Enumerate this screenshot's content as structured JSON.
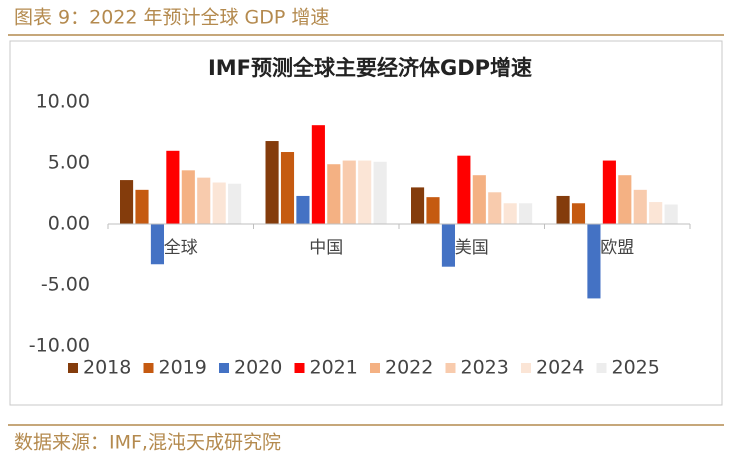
{
  "caption": "图表 9：2022 年预计全球 GDP 增速",
  "source": "数据来源：IMF,混沌天成研究院",
  "chart_data": {
    "type": "bar",
    "title": "IMF预测全球主要经济体GDP增速",
    "categories": [
      "全球",
      "中国",
      "美国",
      "欧盟"
    ],
    "series": [
      {
        "name": "2018",
        "color": "#843c0c",
        "values": [
          3.6,
          6.8,
          3.0,
          2.3
        ]
      },
      {
        "name": "2019",
        "color": "#c55a11",
        "values": [
          2.8,
          5.9,
          2.2,
          1.7
        ]
      },
      {
        "name": "2020",
        "color": "#4472c4",
        "values": [
          -3.3,
          2.3,
          -3.5,
          -6.1
        ]
      },
      {
        "name": "2021",
        "color": "#ff0000",
        "values": [
          6.0,
          8.1,
          5.6,
          5.2
        ]
      },
      {
        "name": "2022",
        "color": "#f4b183",
        "values": [
          4.4,
          4.9,
          4.0,
          4.0
        ]
      },
      {
        "name": "2023",
        "color": "#f8cbad",
        "values": [
          3.8,
          5.2,
          2.6,
          2.8
        ]
      },
      {
        "name": "2024",
        "color": "#fbe5d6",
        "values": [
          3.4,
          5.2,
          1.7,
          1.8
        ]
      },
      {
        "name": "2025",
        "color": "#ededed",
        "values": [
          3.3,
          5.1,
          1.7,
          1.6
        ]
      }
    ],
    "ylim": [
      -10,
      10
    ],
    "yticks": [
      {
        "value": -10,
        "label": "-10.00"
      },
      {
        "value": -5,
        "label": "-5.00"
      },
      {
        "value": 0,
        "label": "0.00"
      },
      {
        "value": 5,
        "label": "5.00"
      },
      {
        "value": 10,
        "label": "10.00"
      }
    ],
    "grid": false,
    "legend": "bottom"
  }
}
